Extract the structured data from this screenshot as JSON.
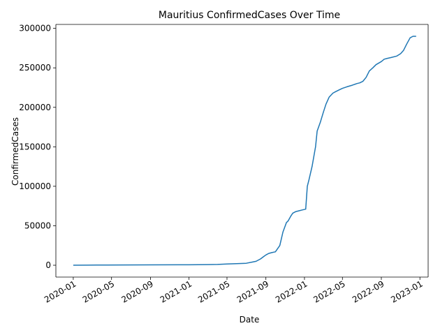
{
  "chart_data": {
    "type": "line",
    "title": "Mauritius  ConfirmedCases Over Time",
    "xlabel": "Date",
    "ylabel": "ConfirmedCases",
    "xlim": [
      "2019-11-07",
      "2023-01-27"
    ],
    "ylim": [
      -15000,
      305000
    ],
    "grid": false,
    "line_color": "#1f77b4",
    "x_ticks": [
      "2020-01",
      "2020-05",
      "2020-09",
      "2021-01",
      "2021-05",
      "2021-09",
      "2022-01",
      "2022-05",
      "2022-09",
      "2023-01"
    ],
    "y_ticks": [
      0,
      50000,
      100000,
      150000,
      200000,
      250000,
      300000
    ],
    "series": [
      {
        "x": [
          "2020-01-01",
          "2020-03-15",
          "2020-04-15",
          "2020-09-01",
          "2021-01-01",
          "2021-03-01",
          "2021-04-01",
          "2021-05-01",
          "2021-06-01",
          "2021-07-01",
          "2021-07-20",
          "2021-08-01",
          "2021-08-15",
          "2021-08-25",
          "2021-09-01",
          "2021-09-10",
          "2021-09-20",
          "2021-10-01",
          "2021-10-15",
          "2021-10-25",
          "2021-11-05",
          "2021-11-10",
          "2021-11-20",
          "2021-11-25",
          "2021-12-05",
          "2021-12-15",
          "2021-12-25",
          "2022-01-05",
          "2022-01-10",
          "2022-01-15",
          "2022-01-25",
          "2022-02-05",
          "2022-02-10",
          "2022-02-20",
          "2022-03-01",
          "2022-03-10",
          "2022-03-20",
          "2022-04-01",
          "2022-04-10",
          "2022-04-20",
          "2022-05-01",
          "2022-05-15",
          "2022-06-01",
          "2022-06-15",
          "2022-06-25",
          "2022-07-05",
          "2022-07-15",
          "2022-07-25",
          "2022-08-05",
          "2022-08-15",
          "2022-09-01",
          "2022-09-10",
          "2022-09-20",
          "2022-10-01",
          "2022-10-20",
          "2022-11-01",
          "2022-11-10",
          "2022-11-20",
          "2022-12-01",
          "2022-12-10",
          "2022-12-20"
        ],
        "values": [
          0,
          200,
          300,
          500,
          600,
          800,
          1000,
          1500,
          2000,
          2500,
          4000,
          5000,
          8000,
          11000,
          13000,
          15000,
          16000,
          17000,
          25000,
          42000,
          54000,
          56000,
          63000,
          66000,
          68000,
          69000,
          70000,
          71000,
          100000,
          108000,
          125000,
          150000,
          170000,
          181000,
          193000,
          204000,
          213000,
          218000,
          220000,
          222000,
          224000,
          226000,
          228000,
          230000,
          231000,
          233000,
          238000,
          246000,
          250000,
          254000,
          258000,
          261000,
          262000,
          263000,
          265000,
          268000,
          272000,
          280000,
          288000,
          290000,
          290000
        ]
      }
    ]
  }
}
